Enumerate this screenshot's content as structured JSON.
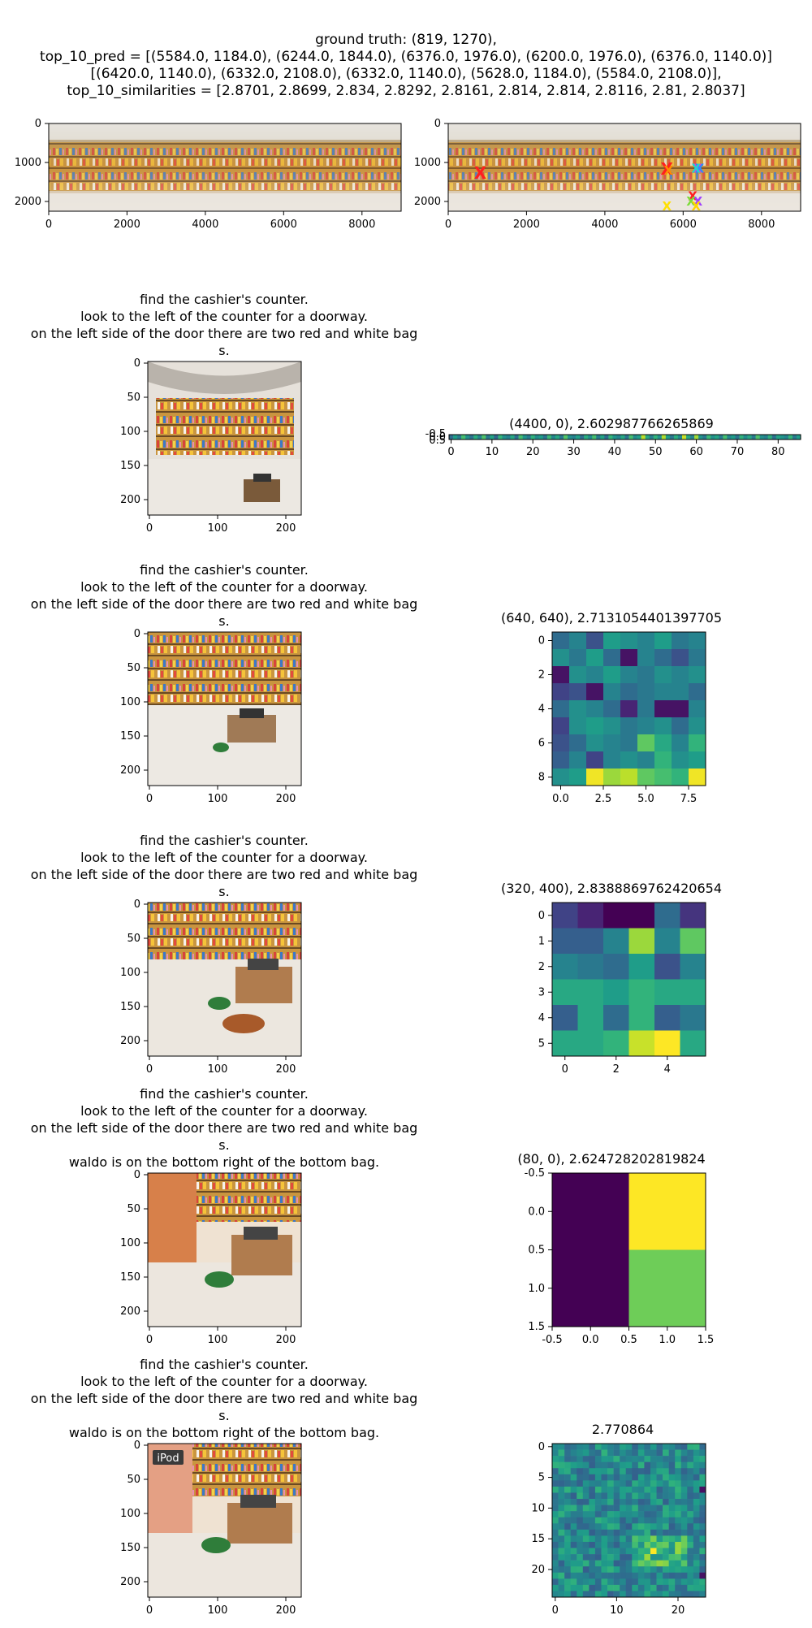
{
  "header": {
    "lines": [
      "ground truth: (819, 1270),",
      "top_10_pred = [(5584.0, 1184.0), (6244.0, 1844.0), (6376.0, 1976.0), (6200.0, 1976.0), (6376.0, 1140.0)]",
      "[(6420.0, 1140.0), (6332.0, 2108.0), (6332.0, 1140.0), (5628.0, 1184.0), (5584.0, 2108.0)],",
      "top_10_similarities = [2.8701, 2.8699, 2.834, 2.8292, 2.8161, 2.814, 2.814, 2.8116, 2.81, 2.8037]"
    ]
  },
  "panorama": {
    "x_ticks": [
      "0",
      "2000",
      "4000",
      "6000",
      "8000"
    ],
    "y_ticks": [
      "0",
      "1000",
      "2000"
    ]
  },
  "pred_marker": "X",
  "crop_ticks": [
    "0",
    "50",
    "100",
    "150",
    "200"
  ],
  "crop_x_ticks": [
    "0",
    "100",
    "200"
  ],
  "rows": [
    {
      "caption": [
        "find the cashier's counter.",
        "look to the left of the counter for a doorway.",
        "on the left side of the door there are two red and white bag",
        "s."
      ],
      "heat_title": "(4400, 0), 2.602987766265869"
    },
    {
      "caption": [
        "find the cashier's counter.",
        "look to the left of the counter for a doorway.",
        "on the left side of the door there are two red and white bag",
        "s."
      ],
      "heat_title": "(640, 640), 2.7131054401397705"
    },
    {
      "caption": [
        "find the cashier's counter.",
        "look to the left of the counter for a doorway.",
        "on the left side of the door there are two red and white bag",
        "s."
      ],
      "heat_title": "(320, 400), 2.8388869762420654"
    },
    {
      "caption": [
        "find the cashier's counter.",
        "look to the left of the counter for a doorway.",
        "on the left side of the door there are two red and white bag",
        "s.",
        "waldo is on the bottom right of the bottom bag."
      ],
      "heat_title": "(80, 0), 2.624728202819824"
    },
    {
      "caption": [
        "find the cashier's counter.",
        "look to the left of the counter for a doorway.",
        "on the left side of the door there are two red and white bag",
        "s.",
        "waldo is on the bottom right of the bottom bag."
      ],
      "heat_title": "2.770864",
      "sign_text": "iPod"
    }
  ],
  "chart_data": [
    {
      "type": "heatmap",
      "title": "ground truth: (819, 1270)",
      "xlim": [
        0,
        9000
      ],
      "ylim": [
        2250,
        0
      ],
      "ground_truth": [
        819,
        1270
      ],
      "top_10_pred": [
        [
          5584,
          1184
        ],
        [
          6244,
          1844
        ],
        [
          6376,
          1976
        ],
        [
          6200,
          1976
        ],
        [
          6376,
          1140
        ],
        [
          6420,
          1140
        ],
        [
          6332,
          2108
        ],
        [
          6332,
          1140
        ],
        [
          5628,
          1184
        ],
        [
          5584,
          2108
        ]
      ],
      "top_10_similarities": [
        2.8701,
        2.8699,
        2.834,
        2.8292,
        2.8161,
        2.814,
        2.814,
        2.8116,
        2.81,
        2.8037
      ]
    },
    {
      "type": "heatmap",
      "title": "(4400, 0), 2.602987766265869",
      "rows": 1,
      "cols": 86,
      "x_ticks": [
        0,
        10,
        20,
        30,
        40,
        50,
        60,
        70,
        80
      ],
      "y_ticks": [
        "-0.5",
        "0.0",
        "0.5"
      ],
      "values": [
        [
          0.35,
          0.55,
          0.42,
          0.7,
          0.5,
          0.38,
          0.62,
          0.45,
          0.72,
          0.4,
          0.58,
          0.33,
          0.66,
          0.5,
          0.44,
          0.6,
          0.36,
          0.7,
          0.52,
          0.41,
          0.64,
          0.48,
          0.55,
          0.38,
          0.68,
          0.46,
          0.6,
          0.4,
          0.73,
          0.5,
          0.44,
          0.57,
          0.36,
          0.62,
          0.49,
          0.7,
          0.42,
          0.58,
          0.35,
          0.66,
          0.52,
          0.45,
          0.6,
          0.38,
          0.7,
          0.48,
          0.56,
          0.9,
          0.6,
          0.43,
          0.65,
          0.5,
          0.88,
          0.55,
          0.4,
          0.62,
          0.47,
          0.92,
          0.6,
          0.45,
          0.86,
          0.52,
          0.4,
          0.68,
          0.5,
          0.58,
          0.42,
          0.7,
          0.46,
          0.55,
          0.38,
          0.64,
          0.49,
          0.6,
          0.41,
          0.72,
          0.5,
          0.44,
          0.63,
          0.37,
          0.58,
          0.52,
          0.45,
          0.66,
          0.4,
          0.55
        ]
      ]
    },
    {
      "type": "heatmap",
      "title": "(640, 640), 2.7131054401397705",
      "rows": 9,
      "cols": 9,
      "x_ticks": [
        0.0,
        2.5,
        5.0,
        7.5
      ],
      "y_ticks": [
        0,
        2,
        4,
        6,
        8
      ],
      "values": [
        [
          0.35,
          0.45,
          0.25,
          0.55,
          0.5,
          0.45,
          0.55,
          0.4,
          0.45
        ],
        [
          0.5,
          0.4,
          0.55,
          0.35,
          0.05,
          0.45,
          0.35,
          0.25,
          0.4
        ],
        [
          0.05,
          0.5,
          0.45,
          0.55,
          0.45,
          0.4,
          0.5,
          0.45,
          0.5
        ],
        [
          0.2,
          0.25,
          0.05,
          0.45,
          0.35,
          0.4,
          0.45,
          0.45,
          0.35
        ],
        [
          0.35,
          0.5,
          0.45,
          0.35,
          0.1,
          0.4,
          0.05,
          0.05,
          0.45
        ],
        [
          0.2,
          0.5,
          0.55,
          0.5,
          0.4,
          0.45,
          0.5,
          0.35,
          0.5
        ],
        [
          0.25,
          0.35,
          0.5,
          0.45,
          0.4,
          0.75,
          0.6,
          0.45,
          0.65
        ],
        [
          0.3,
          0.45,
          0.2,
          0.45,
          0.5,
          0.45,
          0.65,
          0.5,
          0.55
        ],
        [
          0.5,
          0.55,
          0.98,
          0.85,
          0.9,
          0.75,
          0.7,
          0.65,
          0.98
        ]
      ]
    },
    {
      "type": "heatmap",
      "title": "(320, 400), 2.8388869762420654",
      "rows": 6,
      "cols": 6,
      "x_ticks": [
        0,
        2,
        4
      ],
      "y_ticks": [
        0,
        1,
        2,
        3,
        4,
        5
      ],
      "values": [
        [
          0.2,
          0.1,
          0.0,
          0.0,
          0.35,
          0.15
        ],
        [
          0.3,
          0.3,
          0.45,
          0.85,
          0.45,
          0.75
        ],
        [
          0.45,
          0.4,
          0.35,
          0.55,
          0.25,
          0.45
        ],
        [
          0.6,
          0.6,
          0.55,
          0.65,
          0.6,
          0.6
        ],
        [
          0.3,
          0.6,
          0.35,
          0.65,
          0.3,
          0.4
        ],
        [
          0.6,
          0.6,
          0.65,
          0.92,
          1.0,
          0.6
        ]
      ]
    },
    {
      "type": "heatmap",
      "title": "(80, 0), 2.624728202819824",
      "rows": 2,
      "cols": 2,
      "x_ticks": [
        "-0.5",
        "0.0",
        "0.5",
        "1.0",
        "1.5"
      ],
      "y_ticks": [
        "-0.5",
        "0.0",
        "0.5",
        "1.0",
        "1.5"
      ],
      "values": [
        [
          0.0,
          1.0
        ],
        [
          0.0,
          0.78
        ]
      ]
    },
    {
      "type": "heatmap",
      "title": "2.770864",
      "rows": 25,
      "cols": 25,
      "x_ticks": [
        0,
        10,
        20
      ],
      "y_ticks": [
        0,
        5,
        10,
        15,
        20
      ]
    }
  ]
}
